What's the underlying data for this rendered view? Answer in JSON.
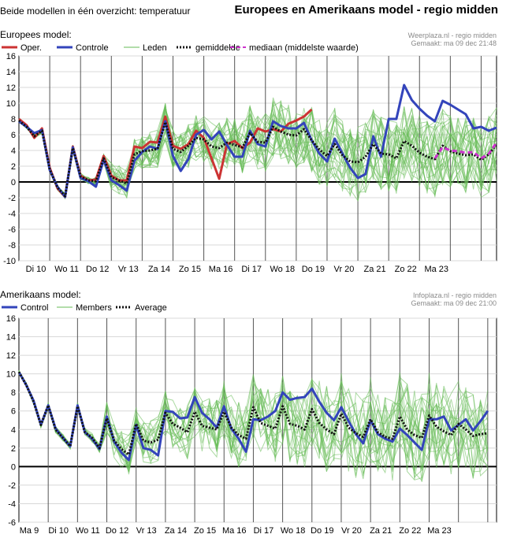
{
  "header": {
    "left_title": "Beide modellen in één overzicht: temperatuur",
    "right_title": "Europees en Amerikaans model - regio midden"
  },
  "colors": {
    "oper": "#cc3333",
    "control": "#3344bb",
    "members": "#66bb55",
    "average": "#111111",
    "median": "#cc33cc",
    "grid": "#000000"
  },
  "chart_data": [
    {
      "type": "line",
      "title": "Europees model:",
      "source_line1": "Weerplaza.nl - regio midden",
      "source_line2": "Gemaakt: ma 09 dec 21:48",
      "legend": [
        "Oper.",
        "Controle",
        "Leden",
        "gemiddelde",
        "mediaan (middelste waarde)"
      ],
      "ylim": [
        -10,
        16
      ],
      "yticks": [
        -10,
        -8,
        -6,
        -4,
        -2,
        0,
        2,
        4,
        6,
        8,
        10,
        12,
        14,
        16
      ],
      "day_labels": [
        "Di 10",
        "Wo 11",
        "Do 12",
        "Vr 13",
        "Za 14",
        "Zo 15",
        "Ma 16",
        "Di 17",
        "Wo 18",
        "Do 19",
        "Vr 20",
        "Za 21",
        "Zo 22",
        "Ma 23"
      ],
      "x_days": 15.5,
      "series": [
        {
          "name": "Oper.",
          "color": "#cc3333",
          "x": [
            0,
            0.25,
            0.5,
            0.75,
            1.0,
            1.25,
            1.5,
            1.75,
            2.0,
            2.25,
            2.5,
            2.75,
            3.0,
            3.25,
            3.5,
            3.75,
            4.0,
            4.25,
            4.5,
            4.75,
            5.0,
            5.25,
            5.5,
            5.75,
            6.0,
            6.25,
            6.5,
            6.75,
            7.0,
            7.25,
            7.5,
            7.75,
            8.0,
            8.25,
            8.5,
            8.75,
            9.0,
            9.25,
            9.5
          ],
          "y": [
            8,
            7.2,
            5.6,
            6.8,
            1.8,
            -0.8,
            -1.9,
            4.5,
            0.8,
            0.2,
            0.3,
            3.3,
            0.8,
            0.2,
            0.2,
            4.5,
            4.3,
            5.1,
            5,
            8.3,
            4.6,
            4.2,
            4.8,
            6.5,
            5.6,
            3,
            0.4,
            4.8,
            5.2,
            4.3,
            5,
            6.8,
            6.4,
            6.7,
            6.4,
            7.4,
            7.8,
            8.3,
            9.2
          ]
        },
        {
          "name": "Controle",
          "color": "#3344bb",
          "x": [
            0,
            0.25,
            0.5,
            0.75,
            1.0,
            1.25,
            1.5,
            1.75,
            2.0,
            2.25,
            2.5,
            2.75,
            3.0,
            3.25,
            3.5,
            3.75,
            4.0,
            4.25,
            4.5,
            4.75,
            5.0,
            5.25,
            5.5,
            5.75,
            6.0,
            6.25,
            6.5,
            6.75,
            7.0,
            7.25,
            7.5,
            7.75,
            8.0,
            8.25,
            8.5,
            8.75,
            9.0,
            9.25,
            9.5,
            9.75,
            10.0,
            10.25,
            10.5,
            10.75,
            11.0,
            11.25,
            11.5,
            11.75,
            12.0,
            12.25,
            12.5,
            12.75,
            13.0,
            13.25,
            13.5,
            13.75,
            14.0,
            14.25,
            14.5,
            14.75,
            15.0,
            15.25,
            15.5
          ],
          "y": [
            7.7,
            7,
            6.2,
            6.6,
            1.5,
            -0.6,
            -1.9,
            4.4,
            0.5,
            0.1,
            -0.6,
            2.8,
            0.2,
            -0.4,
            -1.1,
            2.7,
            3.8,
            4.5,
            4.2,
            7.7,
            3.3,
            1.4,
            2.9,
            6,
            6.6,
            5.4,
            6.4,
            4.7,
            3.2,
            3.2,
            6.5,
            4.8,
            4.5,
            7.7,
            7.1,
            6.8,
            6.8,
            7.5,
            5.3,
            3.6,
            2.6,
            5.5,
            3.6,
            1.8,
            0.5,
            1,
            5.8,
            3.2,
            8,
            8,
            12.3,
            10.4,
            9.3,
            8.4,
            7.7,
            10.3,
            9.8,
            9.2,
            8.6,
            6.8,
            7,
            6.5,
            6.9
          ]
        },
        {
          "name": "gemiddelde",
          "color": "#111111",
          "dashed": true,
          "x": [
            0,
            0.25,
            0.5,
            0.75,
            1.0,
            1.25,
            1.5,
            1.75,
            2.0,
            2.25,
            2.5,
            2.75,
            3.0,
            3.25,
            3.5,
            3.75,
            4.0,
            4.25,
            4.5,
            4.75,
            5.0,
            5.25,
            5.5,
            5.75,
            6.0,
            6.25,
            6.5,
            6.75,
            7.0,
            7.25,
            7.5,
            7.75,
            8.0,
            8.25,
            8.5,
            8.75,
            9.0,
            9.25,
            9.5,
            9.75,
            10.0,
            10.25,
            10.5,
            10.75,
            11.0,
            11.25,
            11.5,
            11.75,
            12.0,
            12.25,
            12.5,
            12.75,
            13.0,
            13.25,
            13.5,
            13.75,
            14.0,
            14.25,
            14.5,
            14.75,
            15.0,
            15.25,
            15.5
          ],
          "y": [
            7.8,
            7,
            5.8,
            6.5,
            1.6,
            -0.7,
            -1.8,
            4.3,
            0.7,
            0.2,
            0.1,
            3,
            0.6,
            0.2,
            -0.2,
            3.5,
            3.9,
            4,
            4.2,
            7.6,
            4.2,
            3.8,
            4.6,
            5.6,
            5.4,
            4.5,
            4.3,
            5,
            4.7,
            4.4,
            6.2,
            5.1,
            5,
            7,
            6.4,
            6,
            5.9,
            6.7,
            5.3,
            4.1,
            3.3,
            4.8,
            3.4,
            2.6,
            2.5,
            3.2,
            4.8,
            3.6,
            3.5,
            3,
            5.2,
            4.6,
            3.7,
            3.2,
            2.9,
            4.6,
            3.9,
            3.6,
            3.4,
            3.5,
            2.8,
            3.5,
            4.8
          ]
        },
        {
          "name": "mediaan (middelste waarde)",
          "color": "#cc33cc",
          "dashed": true,
          "x": [
            13.5,
            13.75,
            14.0,
            14.25,
            14.5,
            14.75,
            15.0,
            15.25,
            15.5
          ],
          "y": [
            3.0,
            4.4,
            4.0,
            3.9,
            3.7,
            3.8,
            3.0,
            3.6,
            5.0
          ]
        }
      ]
    },
    {
      "type": "line",
      "title": "Amerikaans model:",
      "source_line1": "Infoplaza.nl - regio midden",
      "source_line2": "Gemaakt: ma 09 dec 21:00",
      "legend": [
        "Control",
        "Members",
        "Average"
      ],
      "ylim": [
        -6,
        16
      ],
      "yticks": [
        -6,
        -4,
        -2,
        0,
        2,
        4,
        6,
        8,
        10,
        12,
        14,
        16
      ],
      "day_labels": [
        "Ma 9",
        "Di 10",
        "Wo 11",
        "Do 12",
        "Vr 13",
        "Za 14",
        "Zo 15",
        "Ma 16",
        "Di 17",
        "Wo 18",
        "Do 19",
        "Vr 20",
        "Za 21",
        "Zo 22",
        "Ma 23"
      ],
      "x_days": 16.3,
      "series": [
        {
          "name": "Control",
          "color": "#3344bb",
          "x": [
            0,
            0.25,
            0.5,
            0.75,
            1.0,
            1.25,
            1.5,
            1.75,
            2.0,
            2.25,
            2.5,
            2.75,
            3.0,
            3.25,
            3.5,
            3.75,
            4.0,
            4.25,
            4.5,
            4.75,
            5.0,
            5.25,
            5.5,
            5.75,
            6.0,
            6.25,
            6.5,
            6.75,
            7.0,
            7.25,
            7.5,
            7.75,
            8.0,
            8.25,
            8.5,
            8.75,
            9.0,
            9.25,
            9.5,
            9.75,
            10.0,
            10.25,
            10.5,
            10.75,
            11.0,
            11.25,
            11.5,
            11.75,
            12.0,
            12.25,
            12.5,
            12.75,
            13.0,
            13.25,
            13.5,
            13.75,
            14.0,
            14.25,
            14.5,
            14.75,
            15.0,
            15.25,
            15.5,
            15.75,
            16.0
          ],
          "y": [
            10.2,
            8.8,
            7.1,
            4.5,
            6.6,
            4.1,
            3.1,
            2.2,
            6.6,
            3.7,
            3.0,
            1.9,
            5.4,
            2.7,
            1.5,
            0.7,
            4.5,
            2.0,
            1.8,
            1.2,
            6.0,
            5.9,
            5.2,
            5.3,
            7.5,
            5.8,
            5.1,
            4.2,
            6.5,
            4.1,
            3.0,
            1.6,
            5.1,
            5.0,
            5.4,
            6.0,
            8.0,
            7.2,
            7.4,
            7.5,
            8.4,
            7.0,
            5.8,
            5.0,
            6.4,
            4.9,
            3.5,
            2.5,
            5.0,
            3.5,
            3.0,
            2.7,
            4.1,
            3.4,
            2.6,
            1.8,
            5.1,
            5.1,
            5.4,
            3.9,
            4.5,
            5.1,
            3.9,
            4.9,
            6.0
          ]
        },
        {
          "name": "Average",
          "color": "#111111",
          "dashed": true,
          "x": [
            0,
            0.25,
            0.5,
            0.75,
            1.0,
            1.25,
            1.5,
            1.75,
            2.0,
            2.25,
            2.5,
            2.75,
            3.0,
            3.25,
            3.5,
            3.75,
            4.0,
            4.25,
            4.5,
            4.75,
            5.0,
            5.25,
            5.5,
            5.75,
            6.0,
            6.25,
            6.5,
            6.75,
            7.0,
            7.25,
            7.5,
            7.75,
            8.0,
            8.25,
            8.5,
            8.75,
            9.0,
            9.25,
            9.5,
            9.75,
            10.0,
            10.25,
            10.5,
            10.75,
            11.0,
            11.25,
            11.5,
            11.75,
            12.0,
            12.25,
            12.5,
            12.75,
            13.0,
            13.25,
            13.5,
            13.75,
            14.0,
            14.25,
            14.5,
            14.75,
            15.0,
            15.25,
            15.5,
            15.75,
            16.0
          ],
          "y": [
            10.2,
            8.8,
            7.0,
            4.5,
            6.6,
            4.0,
            3.1,
            2.2,
            6.5,
            3.7,
            3.1,
            2.0,
            5.2,
            2.8,
            1.9,
            1.3,
            4.6,
            2.8,
            2.6,
            2.9,
            5.8,
            4.6,
            4.2,
            3.7,
            5.9,
            4.4,
            4.2,
            4.0,
            5.9,
            4.2,
            3.4,
            3.0,
            6.4,
            4.7,
            4.4,
            4.1,
            6.5,
            4.6,
            4.4,
            4.0,
            6.2,
            4.7,
            4.0,
            3.5,
            5.7,
            4.2,
            3.6,
            3.2,
            5.1,
            3.7,
            3.2,
            3.0,
            5.4,
            4.0,
            3.4,
            3.1,
            5.5,
            4.3,
            3.8,
            3.4,
            4.6,
            4.0,
            3.3,
            3.5,
            3.6
          ]
        }
      ]
    }
  ]
}
